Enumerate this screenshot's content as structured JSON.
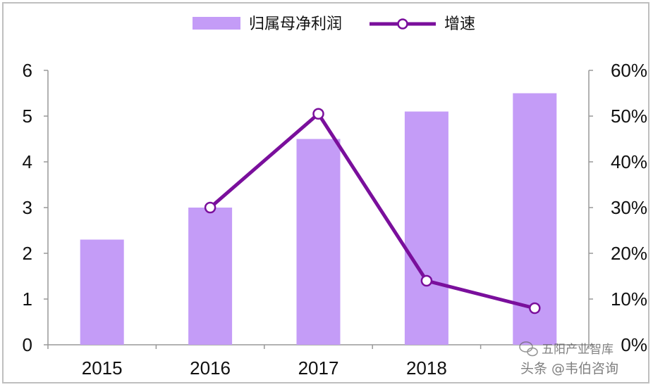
{
  "chart_data": {
    "type": "bar+line",
    "categories": [
      "2015",
      "2016",
      "2017",
      "2018",
      ""
    ],
    "series": [
      {
        "name": "归属母净利润",
        "type": "bar",
        "axis": "left",
        "values": [
          2.3,
          3.0,
          4.5,
          5.1,
          5.5
        ]
      },
      {
        "name": "增速",
        "type": "line",
        "axis": "right",
        "values": [
          null,
          0.3,
          0.505,
          0.14,
          0.08
        ]
      }
    ],
    "y_left": {
      "ylim": [
        0,
        6
      ],
      "ticks": [
        "0",
        "1",
        "2",
        "3",
        "4",
        "5",
        "6"
      ]
    },
    "y_right": {
      "ylim": [
        0,
        0.6
      ],
      "ticks": [
        "0%",
        "10%",
        "20%",
        "30%",
        "40%",
        "50%",
        "60%"
      ]
    },
    "legend_position": "top-center",
    "grid": false,
    "colors": {
      "bar": "#c49cf7",
      "line": "#7a0f9c",
      "marker_fill": "#ffffff"
    }
  },
  "watermark": {
    "line1": "五阳产业智库",
    "line2": "头条 @韦伯咨询",
    "icon": "wechat-icon"
  }
}
